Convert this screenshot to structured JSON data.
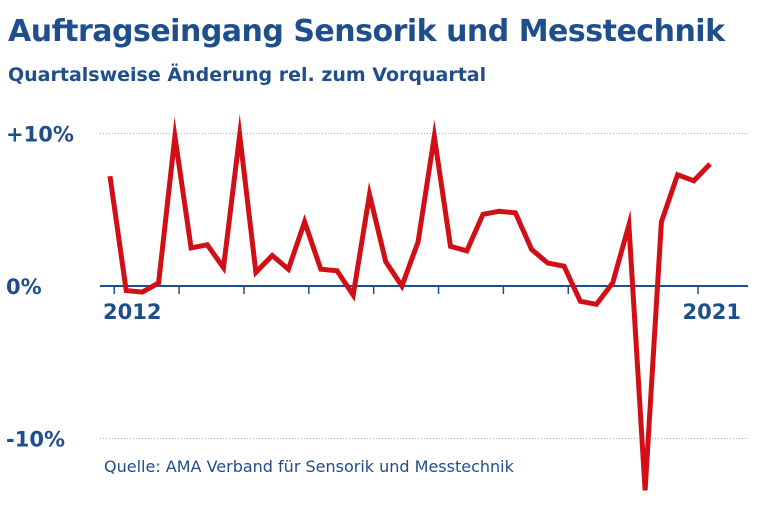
{
  "chart_data": {
    "type": "line",
    "title": "Auftragseingang Sensorik und Messtechnik",
    "subtitle": "Quartalsweise Änderung rel. zum Vorquartal",
    "source": "Quelle: AMA Verband für Sensorik und Messtechnik",
    "y_tick_labels": [
      "+10%",
      "0%",
      "-10%"
    ],
    "y_ticks": [
      10,
      0,
      -10
    ],
    "x_labels": [
      {
        "label": "2012",
        "index": 1
      },
      {
        "label": "2021",
        "index": 37
      }
    ],
    "ylim": [
      -13.5,
      10
    ],
    "grid": true,
    "legend": "none",
    "line_color": "#d00f16",
    "accent_color": "#1f4e8c",
    "values": [
      7.2,
      -0.3,
      -0.4,
      0.2,
      9.8,
      2.5,
      2.7,
      1.2,
      9.9,
      0.9,
      2.0,
      1.1,
      4.2,
      1.1,
      1.0,
      -0.6,
      6.0,
      1.6,
      0.0,
      2.9,
      9.8,
      2.6,
      2.3,
      4.7,
      4.9,
      4.8,
      2.4,
      1.5,
      1.3,
      -1.0,
      -1.2,
      0.2,
      4.0,
      -13.4,
      4.2,
      7.3,
      6.9,
      8.0
    ]
  }
}
